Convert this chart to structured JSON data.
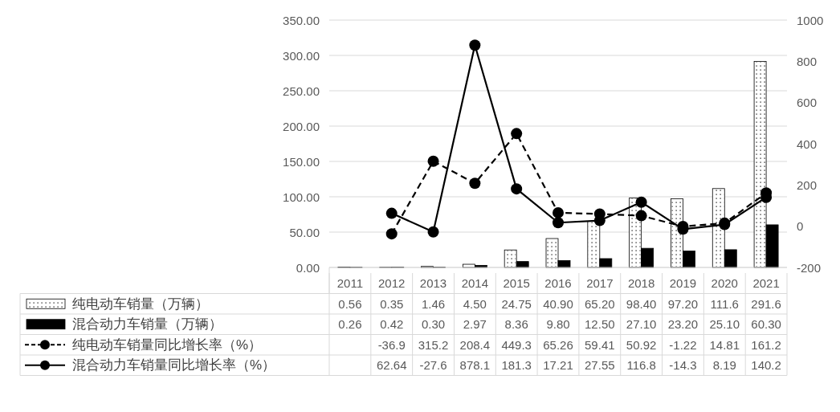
{
  "chart_data": {
    "type": "bar",
    "categories": [
      "2011",
      "2012",
      "2013",
      "2014",
      "2015",
      "2016",
      "2017",
      "2018",
      "2019",
      "2020",
      "2021"
    ],
    "ylim": [
      0,
      350
    ],
    "yticks": [
      {
        "value": 0,
        "label": "0.00"
      },
      {
        "value": 50,
        "label": "50.00"
      },
      {
        "value": 100,
        "label": "100.00"
      },
      {
        "value": 150,
        "label": "150.00"
      },
      {
        "value": 200,
        "label": "200.00"
      },
      {
        "value": 250,
        "label": "250.00"
      },
      {
        "value": 300,
        "label": "300.00"
      },
      {
        "value": 350,
        "label": "350.00"
      }
    ],
    "y2lim": [
      -200,
      1000
    ],
    "y2ticks": [
      -200,
      0,
      200,
      400,
      600,
      800,
      1000
    ],
    "grid": "y",
    "legend": "bottom",
    "marker": "circle",
    "series": [
      {
        "name": "纯电动车销量（万辆）",
        "color": "#ffffff",
        "values": [
          0.56,
          0.35,
          1.46,
          4.5,
          24.75,
          40.9,
          65.2,
          98.4,
          97.2,
          111.6,
          291.6
        ],
        "value_labels": [
          "0.56",
          "0.35",
          "1.46",
          "4.50",
          "24.75",
          "40.90",
          "65.20",
          "98.40",
          "97.20",
          "111.6",
          "291.6"
        ]
      },
      {
        "name": "混合动力车销量（万辆）",
        "color": "#000000",
        "values": [
          0.26,
          0.42,
          0.3,
          2.97,
          8.36,
          9.8,
          12.5,
          27.1,
          23.2,
          25.1,
          60.3
        ],
        "value_labels": [
          "0.26",
          "0.42",
          "0.30",
          "2.97",
          "8.36",
          "9.80",
          "12.50",
          "27.10",
          "23.20",
          "25.10",
          "60.30"
        ]
      },
      {
        "name": "纯电动车销量同比增长率（%）",
        "type": "line",
        "axis": "y2",
        "line_style": "dashed",
        "color": "#000000",
        "values": [
          null,
          -36.9,
          315.2,
          208.4,
          449.3,
          65.26,
          59.41,
          50.92,
          -1.22,
          14.81,
          161.2
        ],
        "value_labels": [
          null,
          "-36.9",
          "315.2",
          "208.4",
          "449.3",
          "65.26",
          "59.41",
          "50.92",
          "-1.22",
          "14.81",
          "161.2"
        ]
      },
      {
        "name": "混合动力车销量同比增长率（%）",
        "type": "line",
        "axis": "y2",
        "line_style": "solid",
        "color": "#000000",
        "values": [
          null,
          62.64,
          -27.6,
          878.1,
          181.3,
          17.21,
          27.55,
          116.8,
          -14.3,
          8.19,
          140.2
        ],
        "value_labels": [
          null,
          "62.64",
          "-27.6",
          "878.1",
          "181.3",
          "17.21",
          "27.55",
          "116.8",
          "-14.3",
          "8.19",
          "140.2"
        ]
      }
    ]
  }
}
